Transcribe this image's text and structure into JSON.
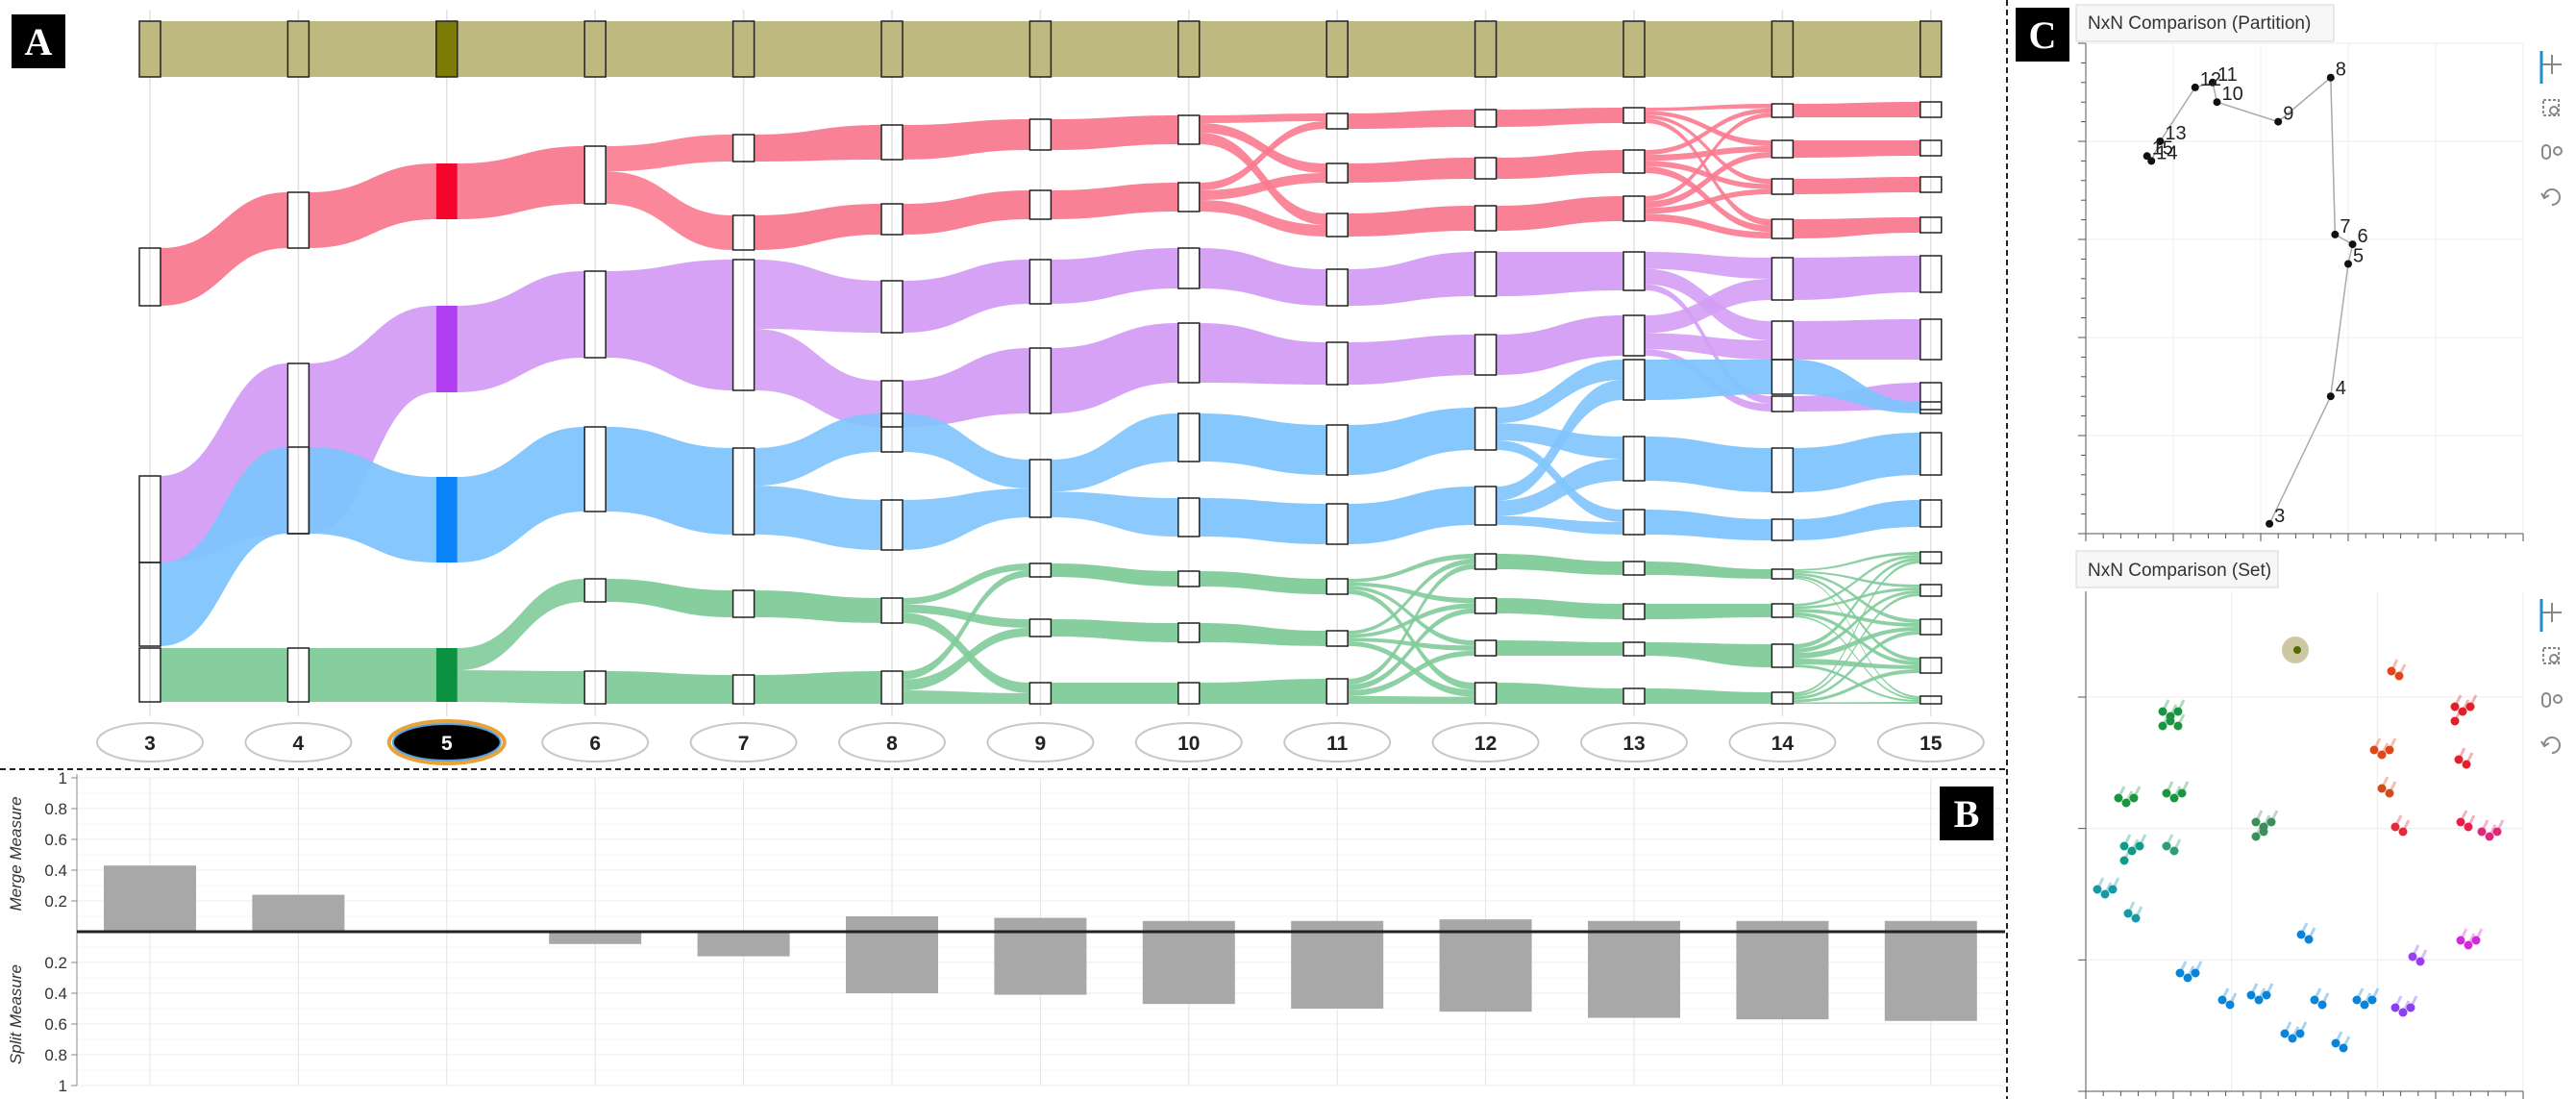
{
  "panels": {
    "a": {
      "letter": "A"
    },
    "b": {
      "letter": "B"
    },
    "c": {
      "letter": "C"
    }
  },
  "colors": {
    "top_band": "#bdb980",
    "top_band_selected": "#7d7a08",
    "red": "#f97a8f",
    "red_selected": "#f4052c",
    "purple": "#d49df5",
    "purple_selected": "#b13ef1",
    "blue": "#80c4fd",
    "blue_selected": "#0a84f8",
    "green": "#81cb9a",
    "green_selected": "#0c9140",
    "bars": "#a8a8a8",
    "toolbar_accent": "#1e90c8"
  },
  "selected_k": "5",
  "chart_data": [
    {
      "type": "sankey",
      "columns": [
        "3",
        "4",
        "5",
        "6",
        "7",
        "8",
        "9",
        "10",
        "11",
        "12",
        "13",
        "14",
        "15"
      ],
      "groups": [
        "top",
        "red",
        "purple",
        "blue",
        "green"
      ]
    },
    {
      "type": "bar",
      "categories": [
        "3",
        "4",
        "5",
        "6",
        "7",
        "8",
        "9",
        "10",
        "11",
        "12",
        "13",
        "14",
        "15"
      ],
      "series": [
        {
          "name": "Merge Measure",
          "values": [
            0.43,
            0.24,
            0,
            0,
            0,
            0.1,
            0.09,
            0.07,
            0.07,
            0.08,
            0.07,
            0.07,
            0.07
          ]
        },
        {
          "name": "Split Measure",
          "values": [
            0,
            0,
            0,
            0.08,
            0.16,
            0.4,
            0.41,
            0.47,
            0.5,
            0.52,
            0.56,
            0.57,
            0.58
          ]
        }
      ],
      "ylabel_top": "Merge Measure",
      "ylabel_bottom": "Split Measure",
      "yticks_top": [
        "1",
        "0.8",
        "0.6",
        "0.4",
        "0.2"
      ],
      "yticks_bottom": [
        "0.2",
        "0.4",
        "0.6",
        "0.8",
        "1"
      ],
      "ylim": [
        0,
        1
      ]
    },
    {
      "type": "scatter",
      "title": "NxN Comparison (Partition)",
      "points": [
        {
          "label": "3",
          "x": 0.42,
          "y": 0.02
        },
        {
          "label": "4",
          "x": 0.56,
          "y": 0.28
        },
        {
          "label": "5",
          "x": 0.6,
          "y": 0.55
        },
        {
          "label": "6",
          "x": 0.61,
          "y": 0.59
        },
        {
          "label": "7",
          "x": 0.57,
          "y": 0.61
        },
        {
          "label": "8",
          "x": 0.56,
          "y": 0.93
        },
        {
          "label": "9",
          "x": 0.44,
          "y": 0.84
        },
        {
          "label": "10",
          "x": 0.3,
          "y": 0.88
        },
        {
          "label": "11",
          "x": 0.29,
          "y": 0.92
        },
        {
          "label": "12",
          "x": 0.25,
          "y": 0.91
        },
        {
          "label": "13",
          "x": 0.17,
          "y": 0.8
        },
        {
          "label": "14",
          "x": 0.15,
          "y": 0.76
        },
        {
          "label": "15",
          "x": 0.14,
          "y": 0.77
        }
      ]
    },
    {
      "type": "scatter",
      "title": "NxN Comparison (Set)"
    }
  ]
}
